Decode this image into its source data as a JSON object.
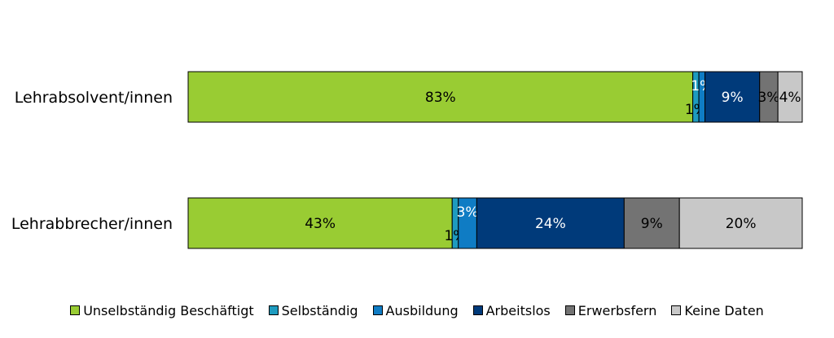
{
  "chart_data": {
    "type": "bar",
    "orientation": "horizontal",
    "stacked": true,
    "normalized": true,
    "categories": [
      "Lehrabsolvent/innen",
      "Lehrabbrecher/innen"
    ],
    "series": [
      {
        "name": "Unselbständig Beschäftigt",
        "color": "#99CC33",
        "values": [
          83,
          43
        ],
        "labels": [
          "83%",
          "43%"
        ]
      },
      {
        "name": "Selbständig",
        "color": "#1E9BBF",
        "values": [
          1,
          1
        ],
        "labels": [
          "1%",
          "1%"
        ]
      },
      {
        "name": "Ausbildung",
        "color": "#0F7CC4",
        "values": [
          1,
          3
        ],
        "labels": [
          "1%",
          "3%"
        ]
      },
      {
        "name": "Arbeitslos",
        "color": "#003A7A",
        "values": [
          9,
          24
        ],
        "labels": [
          "9%",
          "24%"
        ]
      },
      {
        "name": "Erwerbsfern",
        "color": "#737373",
        "values": [
          3,
          9
        ],
        "labels": [
          "3%",
          "9%"
        ]
      },
      {
        "name": "Keine Daten",
        "color": "#C8C8C8",
        "values": [
          4,
          20
        ],
        "labels": [
          "4%",
          "20%"
        ]
      }
    ],
    "label_colors": [
      "#000000",
      "#ffffff",
      "#ffffff",
      "#ffffff",
      "#000000",
      "#000000"
    ],
    "legend_position": "bottom",
    "grid": false
  }
}
